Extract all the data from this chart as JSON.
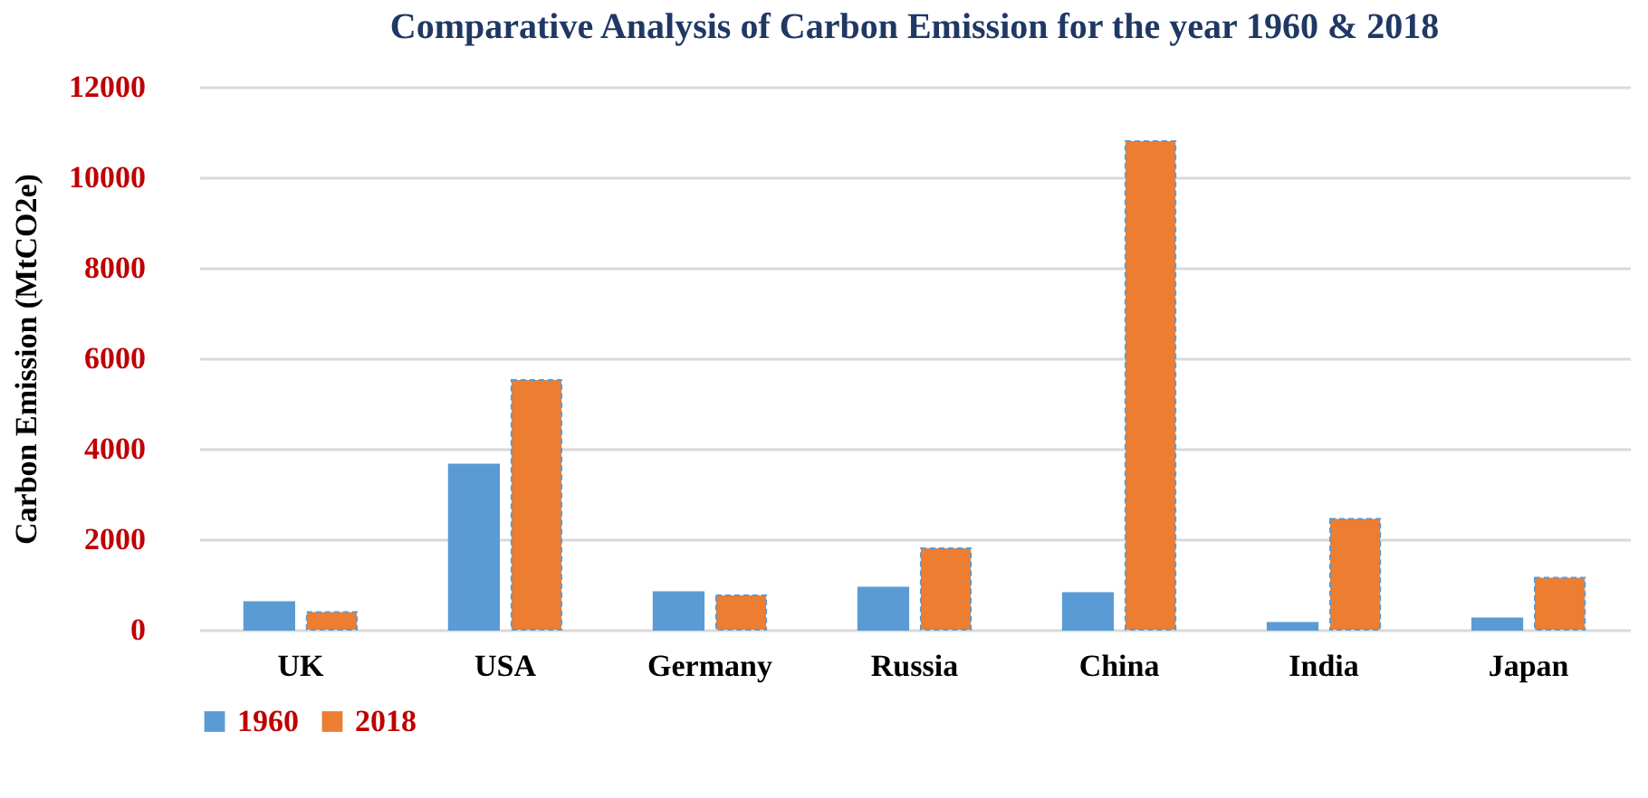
{
  "chart_data": {
    "type": "bar",
    "title": "Comparative Analysis of Carbon Emission for the year 1960 & 2018",
    "ylabel": "Carbon Emission (MtCO2e)",
    "categories": [
      "UK",
      "USA",
      "Germany",
      "Russia",
      "China",
      "India",
      "Japan"
    ],
    "series": [
      {
        "name": "1960",
        "color": "#5b9bd5",
        "values": [
          610,
          3650,
          830,
          930,
          810,
          150,
          250
        ]
      },
      {
        "name": "2018",
        "color": "#ed7d31",
        "values": [
          390,
          5520,
          760,
          1800,
          10800,
          2450,
          1150
        ]
      }
    ],
    "ylim": [
      0,
      12000
    ],
    "yticks": [
      0,
      2000,
      4000,
      6000,
      8000,
      10000,
      12000
    ],
    "grid": "y",
    "legend": "bottom"
  }
}
